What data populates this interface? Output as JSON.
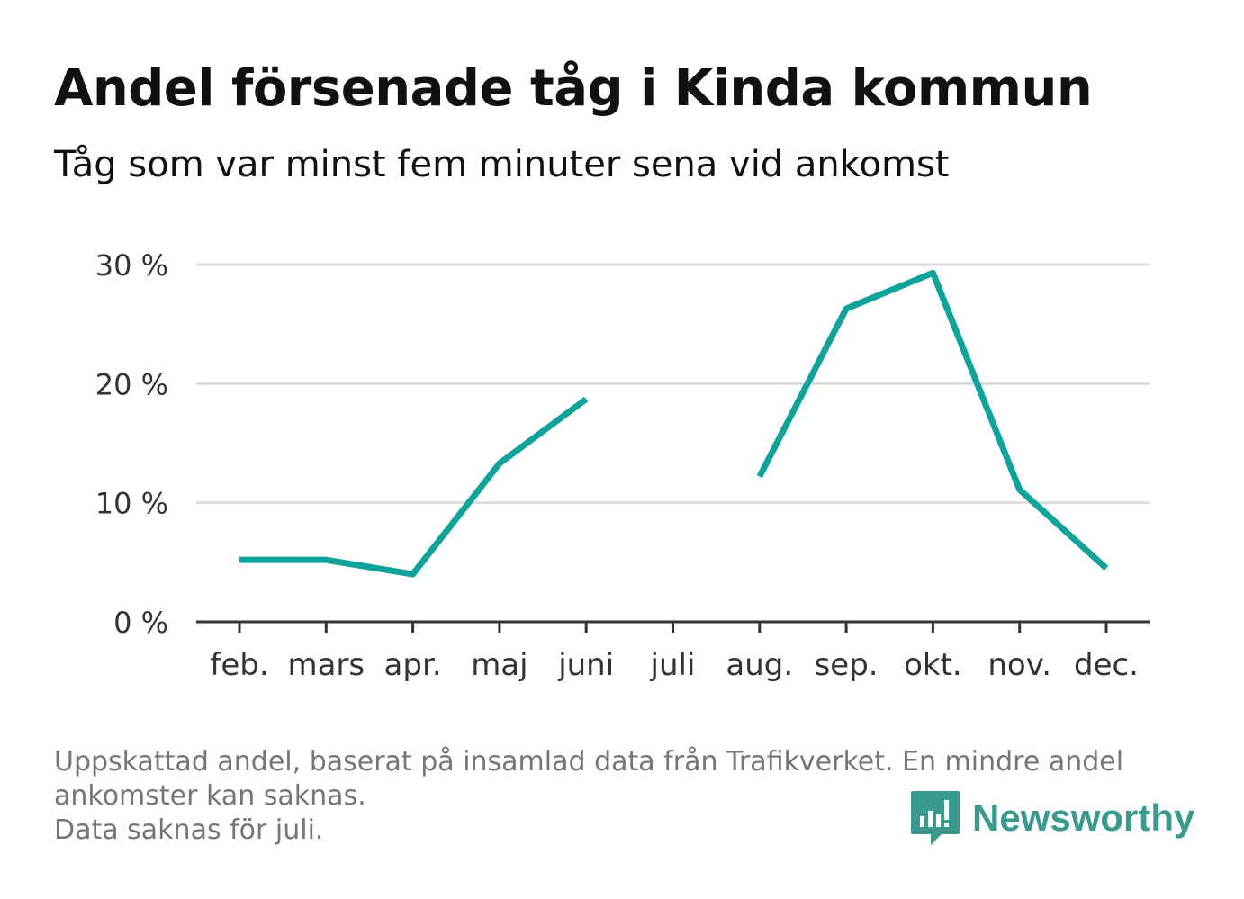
{
  "title": "Andel försenade tåg i Kinda kommun",
  "subtitle": "Tåg som var minst fem minuter sena vid ankomst",
  "chart_data": {
    "type": "line",
    "categories": [
      "feb.",
      "mars",
      "apr.",
      "maj",
      "juni",
      "juli",
      "aug.",
      "sep.",
      "okt.",
      "nov.",
      "dec."
    ],
    "series": [
      {
        "values": [
          5.2,
          5.2,
          4.0,
          13.3,
          18.7,
          null,
          12.2,
          26.3,
          29.3,
          11.1,
          4.5
        ]
      }
    ],
    "y_ticks": [
      "0 %",
      "10 %",
      "20 %",
      "30 %"
    ],
    "ylim": [
      0,
      30
    ],
    "grid": true,
    "line_color": "#0fa39a"
  },
  "notes": [
    "Uppskattad andel, baserat på insamlad data från Trafikverket. En mindre andel",
    "ankomster kan saknas.",
    "Data saknas för juli."
  ],
  "brand": {
    "name": "Newsworthy",
    "icon": "newsworthy-logo-icon",
    "color": "#3a9a8e"
  }
}
